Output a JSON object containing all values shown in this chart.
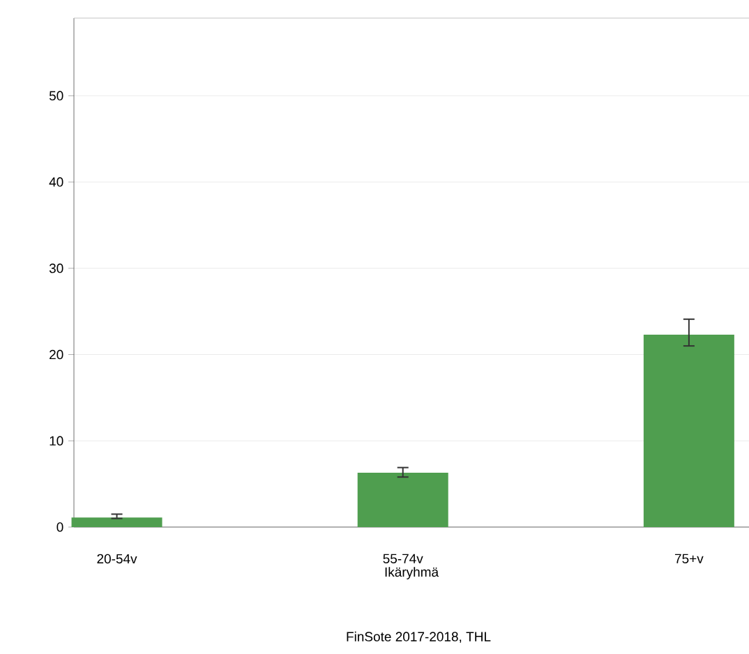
{
  "chart_data": {
    "type": "bar",
    "xlabel": "Ikäryhmä",
    "categories": [
      "20-54v",
      "55-74v",
      "75+v"
    ],
    "values": [
      1.1,
      6.3,
      22.3
    ],
    "errors": [
      [
        1.0,
        1.5
      ],
      [
        5.8,
        6.9
      ],
      [
        21.0,
        24.1
      ]
    ],
    "color": "#4f9e4f",
    "ylim": [
      0,
      59
    ],
    "yticks": [
      0,
      10,
      20,
      30,
      40,
      50
    ],
    "grid": "y",
    "annotations": [
      "FinSote 2017-2018, THL"
    ]
  }
}
